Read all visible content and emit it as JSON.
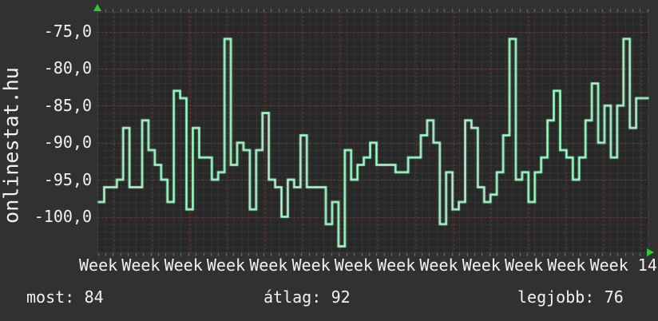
{
  "branding": {
    "site": "onlinestat.hu"
  },
  "colors": {
    "background": "#313131",
    "plot_background": "#282828",
    "line": "#7de9ab",
    "line_core": "#c9f7dd",
    "grid_minor": "#4d4d4d",
    "grid_major": "#8a3d3d",
    "border": "#636363",
    "tick": "#8a8a8a",
    "tick_major": "#a04040",
    "text": "#f2f2f2",
    "axis_arrow": "#2ecc2e"
  },
  "stats": {
    "most": {
      "label": "most:",
      "value": "84"
    },
    "atlag": {
      "label": "átlag:",
      "value": "92"
    },
    "legjobb": {
      "label": "legjobb:",
      "value": "76"
    }
  },
  "chart_data": {
    "type": "line",
    "step_style": true,
    "title": "",
    "xlabel": "",
    "ylabel": "",
    "legend": "none",
    "grid": "minor dotted gray, major dashed red every 5 minors",
    "y_tick_labels": [
      "-75,0",
      "-80,0",
      "-85,0",
      "-90,0",
      "-95,0",
      "-100,0"
    ],
    "y_tick_values": [
      -75,
      -80,
      -85,
      -90,
      -95,
      -100
    ],
    "ylim": [
      -104.8,
      -72.4
    ],
    "x_tick_labels": [
      "Week 02",
      "Week 03",
      "Week 04",
      "Week 05",
      "Week 06",
      "Week 07",
      "Week 08",
      "Week 09",
      "Week 10",
      "Week 11",
      "Week 12",
      "Week 13",
      "Week 14"
    ],
    "values": [
      -98,
      -96,
      -96,
      -95,
      -88,
      -96,
      -96,
      -87,
      -91,
      -93,
      -95,
      -98,
      -83,
      -84,
      -99,
      -88,
      -92,
      -92,
      -95,
      -94,
      -76,
      -93,
      -90,
      -91,
      -99,
      -91,
      -86,
      -95,
      -96,
      -100,
      -95,
      -96,
      -89,
      -96,
      -96,
      -96,
      -101,
      -98,
      -104,
      -91,
      -95,
      -93,
      -92,
      -90,
      -93,
      -93,
      -93,
      -94,
      -94,
      -92,
      -92,
      -89,
      -87,
      -90,
      -101,
      -94,
      -99,
      -98,
      -87,
      -88,
      -96,
      -98,
      -97,
      -94,
      -89,
      -76,
      -95,
      -94,
      -98,
      -94,
      -92,
      -87,
      -83,
      -91,
      -92,
      -95,
      -92,
      -87,
      -82,
      -90,
      -85,
      -92,
      -85,
      -76,
      -88,
      -84,
      -84
    ],
    "summary": {
      "current": 84,
      "average": 92,
      "best": 76
    }
  }
}
